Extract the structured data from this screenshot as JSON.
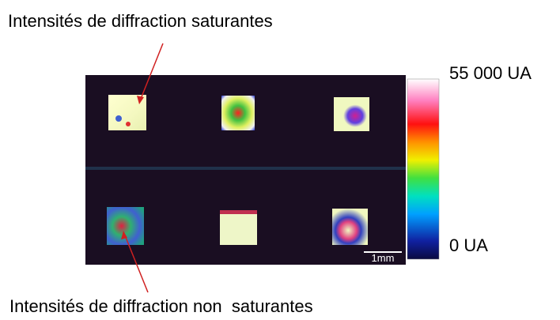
{
  "annotations": {
    "top": "Intensités de diffraction saturantes",
    "bottom": "Intensités de diffraction non  saturantes"
  },
  "colorbar": {
    "max_label": "55 000 UA",
    "min_label": "0 UA"
  },
  "scale_bar": {
    "label": "1mm"
  }
}
